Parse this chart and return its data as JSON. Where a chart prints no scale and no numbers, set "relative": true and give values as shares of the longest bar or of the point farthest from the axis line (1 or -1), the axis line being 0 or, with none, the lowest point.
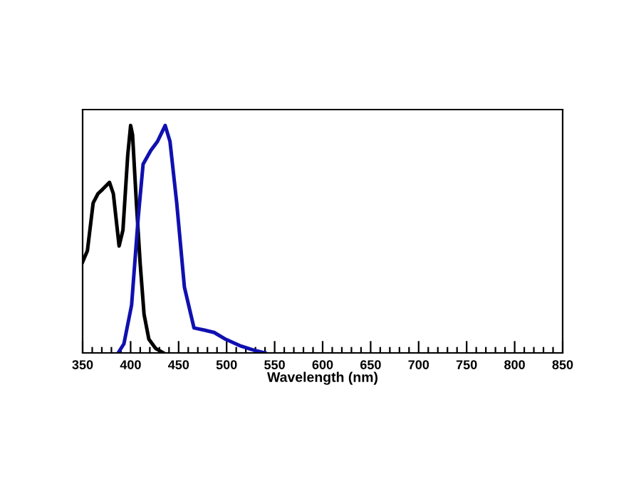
{
  "chart_data": {
    "type": "line",
    "xlabel": "Wavelength (nm)",
    "relative": true,
    "xlim": [
      350,
      850
    ],
    "xticks": [
      350,
      {
        "value": 360,
        "label": null
      },
      {
        "value": 370,
        "label": null
      },
      {
        "value": 380,
        "label": null
      },
      {
        "value": 390,
        "label": null
      },
      400,
      {
        "value": 410,
        "label": null
      },
      {
        "value": 420,
        "label": null
      },
      {
        "value": 430,
        "label": null
      },
      {
        "value": 440,
        "label": null
      },
      450,
      {
        "value": 460,
        "label": null
      },
      {
        "value": 470,
        "label": null
      },
      {
        "value": 480,
        "label": null
      },
      {
        "value": 490,
        "label": null
      },
      500,
      {
        "value": 510,
        "label": null
      },
      {
        "value": 520,
        "label": null
      },
      {
        "value": 530,
        "label": null
      },
      {
        "value": 540,
        "label": null
      },
      550,
      {
        "value": 560,
        "label": null
      },
      {
        "value": 570,
        "label": null
      },
      {
        "value": 580,
        "label": null
      },
      {
        "value": 590,
        "label": null
      },
      600,
      {
        "value": 610,
        "label": null
      },
      {
        "value": 620,
        "label": null
      },
      {
        "value": 630,
        "label": null
      },
      {
        "value": 640,
        "label": null
      },
      650,
      {
        "value": 660,
        "label": null
      },
      {
        "value": 670,
        "label": null
      },
      {
        "value": 680,
        "label": null
      },
      {
        "value": 690,
        "label": null
      },
      700,
      {
        "value": 710,
        "label": null
      },
      {
        "value": 720,
        "label": null
      },
      {
        "value": 730,
        "label": null
      },
      {
        "value": 740,
        "label": null
      },
      750,
      {
        "value": 760,
        "label": null
      },
      {
        "value": 770,
        "label": null
      },
      {
        "value": 780,
        "label": null
      },
      {
        "value": 790,
        "label": null
      },
      800,
      {
        "value": 810,
        "label": null
      },
      {
        "value": 820,
        "label": null
      },
      {
        "value": 830,
        "label": null
      },
      {
        "value": 840,
        "label": null
      },
      850
    ],
    "grid": false,
    "legend": false,
    "marker": "none",
    "line_style": "solid",
    "series": [
      {
        "color": "#000000",
        "x": [
          350,
          355,
          361,
          366,
          371,
          378,
          382,
          388,
          392,
          397,
          400,
          402,
          406,
          410,
          414,
          419,
          426,
          434
        ],
        "values": [
          0.4,
          0.45,
          0.66,
          0.7,
          0.72,
          0.75,
          0.7,
          0.47,
          0.54,
          0.87,
          1.0,
          0.96,
          0.66,
          0.39,
          0.17,
          0.06,
          0.02,
          0
        ]
      },
      {
        "color": "#1010b0",
        "x": [
          387,
          393,
          401,
          408,
          413,
          421,
          428,
          436,
          441,
          448,
          456,
          466,
          477,
          487,
          499,
          515,
          530,
          540
        ],
        "values": [
          0,
          0.04,
          0.21,
          0.6,
          0.83,
          0.89,
          0.93,
          1.0,
          0.93,
          0.66,
          0.29,
          0.11,
          0.1,
          0.09,
          0.06,
          0.03,
          0.01,
          0
        ]
      }
    ]
  }
}
